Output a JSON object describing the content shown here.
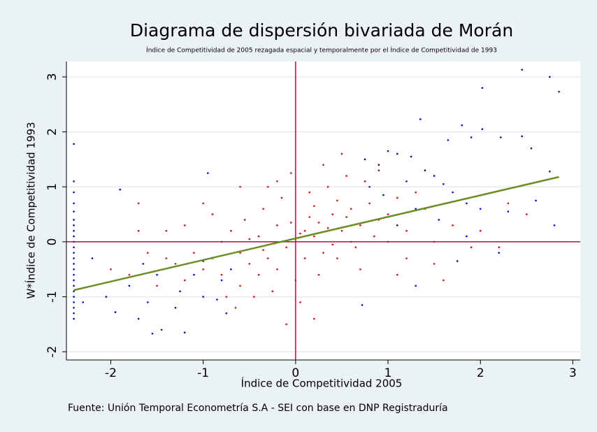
{
  "chart_data": {
    "type": "scatter",
    "title": "Diagrama de dispersión bivariada de Morán",
    "subtitle": "Índice de Competitividad de 2005 rezagada espacial y temporalmente por el Índice de Competitividad de 1993",
    "x_label": "Índice de Competitividad 2005",
    "y_label": "W*Índice de Competitividad 1993",
    "note": "Fuente: Unión Temporal Econometría S.A - SEI con base en DNP Registraduría",
    "xlim": [
      -2.48,
      3.08
    ],
    "ylim": [
      -2.15,
      3.28
    ],
    "xticks": [
      -2,
      -1,
      0,
      1,
      2,
      3
    ],
    "yticks": [
      -2,
      -1,
      0,
      1,
      2,
      3
    ],
    "grid": true,
    "grid_color": "#e3edef",
    "reference_lines": {
      "x": 0,
      "y": 0,
      "color": "#b0103a"
    },
    "fit_line": {
      "x": [
        -2.4,
        2.85
      ],
      "y": [
        -0.88,
        1.18
      ],
      "color": "#6b8e23"
    },
    "series": [
      {
        "color": "#ff0000",
        "x": [
          0,
          0.1,
          -0.1,
          0.2,
          -0.2,
          0.3,
          -0.3,
          0.4,
          -0.4,
          0.5,
          -0.5,
          0.6,
          -0.6,
          0.7,
          -0.7,
          0.8,
          -0.8,
          0.9,
          -0.9,
          1.0,
          -1.0,
          1.1,
          -1.1,
          1.2,
          -1.2,
          1.3,
          -1.3,
          1.4,
          -1.4,
          1.5,
          -1.5,
          0.15,
          -0.15,
          0.25,
          -0.25,
          0.35,
          -0.35,
          0.45,
          -0.45,
          0.55,
          -0.55,
          0.65,
          -0.65,
          0.75,
          -0.05,
          0.05,
          -0.1,
          0.2,
          0.5,
          0.3,
          -0.3,
          -1.0,
          -1.2,
          -1.6,
          -1.8,
          -1.7,
          -2.0,
          -0.2,
          0.1,
          0.15,
          -0.05,
          0.35,
          0.45,
          -0.4,
          -0.6,
          0.6,
          0.85,
          1.0,
          1.2,
          1.5,
          1.7,
          1.9,
          2.0,
          2.2,
          2.3,
          2.5,
          1.6,
          1.1,
          0.7,
          0.0,
          -0.8,
          -0.9,
          -1.4,
          -1.7,
          -0.6,
          -0.2,
          0.9,
          -0.75,
          0.2,
          -0.15,
          0.05,
          0.25,
          -0.35,
          0.55,
          0.4,
          -0.5
        ],
        "values": [
          0.05,
          0.2,
          -0.1,
          0.1,
          0.3,
          -0.2,
          -0.3,
          0.5,
          0.1,
          0.2,
          -0.4,
          0.6,
          -0.2,
          0.3,
          0.2,
          0.7,
          -0.6,
          0.4,
          -0.3,
          0.5,
          -0.5,
          0.8,
          -0.2,
          0.2,
          -0.7,
          0.9,
          -0.4,
          0.6,
          0.2,
          0.0,
          -0.8,
          0.9,
          0.8,
          -0.6,
          -0.9,
          1.0,
          0.6,
          -0.3,
          -1.0,
          1.2,
          0.4,
          -0.1,
          -1.2,
          1.1,
          1.25,
          -1.1,
          -1.5,
          -1.4,
          1.6,
          1.4,
          1.0,
          0.7,
          0.3,
          -0.2,
          -0.6,
          0.2,
          -0.5,
          -0.5,
          -0.3,
          0.45,
          0.35,
          0.25,
          0.75,
          -0.6,
          -0.8,
          0.0,
          0.1,
          0.0,
          -0.3,
          -0.4,
          0.3,
          -0.1,
          0.2,
          -0.1,
          0.7,
          0.5,
          -0.7,
          -0.6,
          -0.5,
          -0.7,
          0.0,
          0.5,
          -0.3,
          0.7,
          1.0,
          1.1,
          1.3,
          -1.0,
          0.65,
          0.0,
          0.15,
          0.35,
          -0.15,
          0.45,
          -0.05,
          0.05
        ]
      },
      {
        "color": "#0000ff",
        "x": [
          -2.4,
          -2.4,
          -2.4,
          -2.4,
          -2.4,
          -2.4,
          -2.4,
          -2.4,
          -2.4,
          -2.4,
          -2.4,
          -2.4,
          -2.4,
          -2.4,
          -2.4,
          -2.4,
          -2.4,
          -2.4,
          -2.4,
          -2.4,
          -2.4,
          -2.4,
          -2.4,
          -2.4,
          2.45,
          2.75,
          2.85,
          2.02,
          1.35,
          1.8,
          2.02,
          1.65,
          1.9,
          2.45,
          2.55,
          2.22,
          1.0,
          1.1,
          1.25,
          0.75,
          0.9,
          1.4,
          1.5,
          1.6,
          1.2,
          0.8,
          0.95,
          1.7,
          1.85,
          2.0,
          2.3,
          2.6,
          2.75,
          2.8,
          1.3,
          1.1,
          1.55,
          2.2,
          1.85,
          1.75,
          0.72,
          1.3,
          -1.9,
          -0.95,
          -2.2,
          -2.05,
          -1.95,
          -1.55,
          -1.45,
          -1.2,
          -1.7,
          -1.6,
          -1.3,
          -1.0,
          -0.85,
          -0.8,
          -0.7,
          -1.1,
          -1.25,
          -1.5,
          -1.8,
          -1.65,
          -2.3,
          -0.75,
          -1.0
        ],
        "values": [
          1.78,
          1.1,
          0.9,
          0.7,
          0.55,
          0.4,
          0.3,
          0.2,
          0.1,
          0,
          -0.1,
          -0.2,
          -0.3,
          -0.4,
          -0.5,
          -0.6,
          -0.7,
          -0.8,
          -0.9,
          -1.0,
          -1.1,
          -1.2,
          -1.3,
          -1.4,
          3.13,
          3.0,
          2.73,
          2.8,
          2.23,
          2.12,
          2.05,
          1.85,
          1.9,
          1.92,
          1.7,
          1.9,
          1.65,
          1.6,
          1.55,
          1.5,
          1.4,
          1.3,
          1.2,
          1.05,
          1.1,
          1.0,
          0.85,
          0.9,
          0.7,
          0.6,
          0.55,
          0.75,
          1.28,
          0.3,
          0.6,
          0.3,
          0.4,
          -0.2,
          0.1,
          -0.35,
          -1.15,
          -0.8,
          0.95,
          1.25,
          -0.3,
          -1.0,
          -1.28,
          -1.67,
          -1.6,
          -1.65,
          -1.4,
          -1.1,
          -1.2,
          -1.0,
          -1.05,
          -0.7,
          -0.5,
          -0.6,
          -0.9,
          -0.6,
          -0.8,
          -0.4,
          -1.1,
          -1.3,
          -0.35
        ]
      }
    ]
  }
}
